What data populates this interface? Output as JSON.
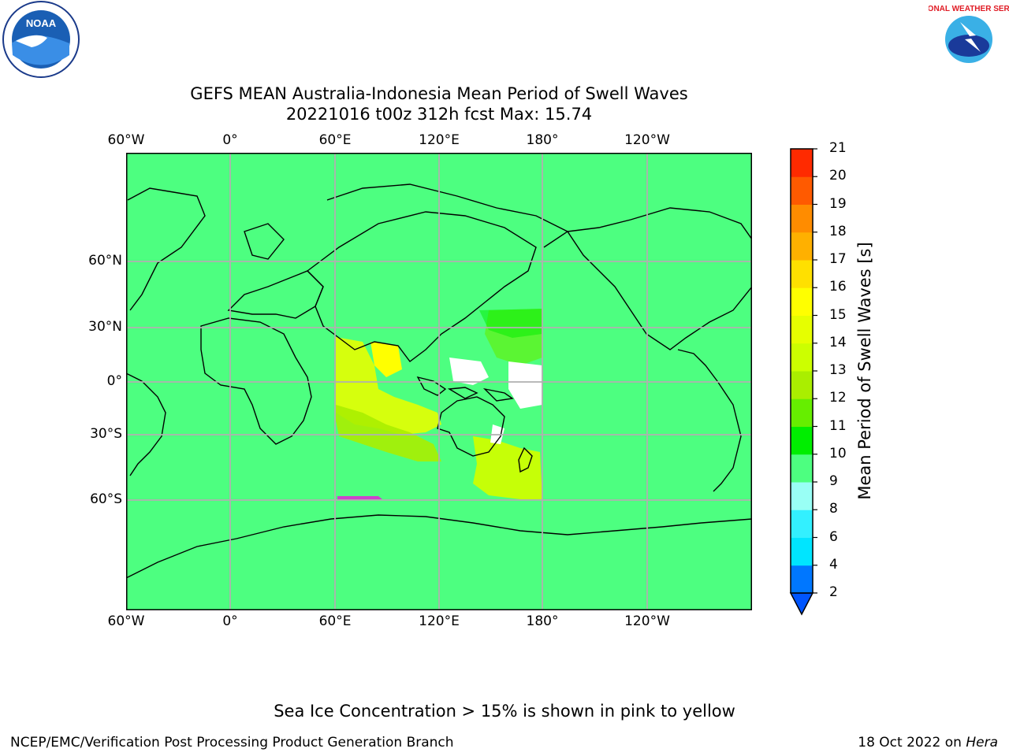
{
  "title": {
    "line1": "GEFS MEAN Australia-Indonesia Mean Period of Swell Waves",
    "line2": "20221016 t00z 312h fcst   Max: 15.74"
  },
  "logos": {
    "left": {
      "name": "noaa-logo",
      "text": "NOAA"
    },
    "right": {
      "name": "nws-logo",
      "text": "NATIONAL WEATHER SERVICE"
    }
  },
  "map": {
    "background_color": "#4dff80",
    "land_outline": "#000000",
    "grid_color": "#b0b0b0",
    "lon_labels": [
      "60°W",
      "0°",
      "60°E",
      "120°E",
      "180°",
      "120°W"
    ],
    "lat_labels": [
      "60°N",
      "30°N",
      "0°",
      "30°S",
      "60°S"
    ]
  },
  "colorbar": {
    "title": "Mean Period of Swell Waves [s]",
    "levels": [
      "2",
      "4",
      "6",
      "8",
      "9",
      "10",
      "11",
      "12",
      "13",
      "14",
      "15",
      "16",
      "17",
      "18",
      "19",
      "20",
      "21"
    ],
    "colors": [
      "#0055ff",
      "#0077ff",
      "#00e5ff",
      "#33f0ff",
      "#99fff5",
      "#4dff80",
      "#00ee00",
      "#66ee00",
      "#aaee00",
      "#ccff00",
      "#e6ff00",
      "#ffff00",
      "#ffe000",
      "#ffb000",
      "#ff8c00",
      "#ff5a00",
      "#ff2a00",
      "#ff0000"
    ]
  },
  "footer": {
    "note": "Sea Ice Concentration > 15% is shown in pink to yellow",
    "left": "NCEP/EMC/Verification Post Processing Product Generation Branch",
    "right_prefix": "18 Oct 2022 on ",
    "right_italic": "Hera"
  }
}
